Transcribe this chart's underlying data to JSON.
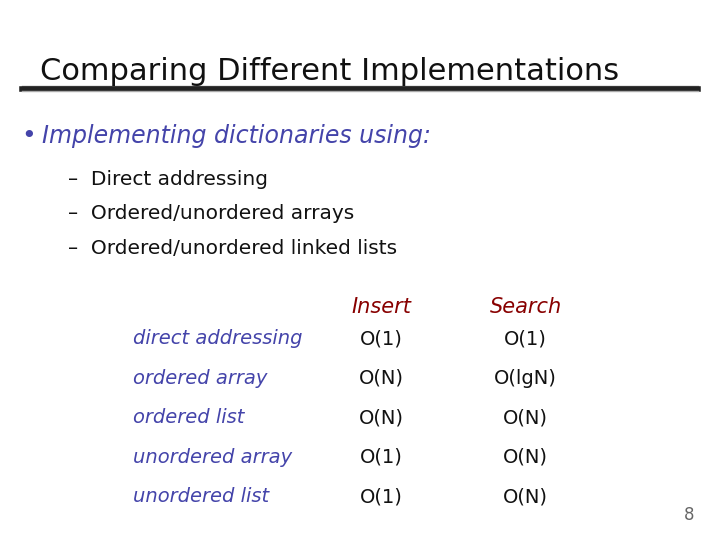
{
  "title": "Comparing Different Implementations",
  "title_fontsize": 22,
  "title_color": "#111111",
  "slide_bg": "#ffffff",
  "bullet_text": "Implementing dictionaries using:",
  "bullet_color": "#4444aa",
  "bullet_fontsize": 17,
  "dash_items": [
    "Direct addressing",
    "Ordered/unordered arrays",
    "Ordered/unordered linked lists"
  ],
  "dash_color": "#111111",
  "dash_fontsize": 14.5,
  "row_labels": [
    "direct addressing",
    "ordered array",
    "ordered list",
    "unordered array",
    "unordered list"
  ],
  "row_label_color": "#4444aa",
  "col_headers": [
    "Insert",
    "Search"
  ],
  "col_header_color": "#880000",
  "col_header_fontsize": 15,
  "insert_values": [
    "O(1)",
    "O(N)",
    "O(N)",
    "O(1)",
    "O(1)"
  ],
  "search_values": [
    "O(1)",
    "O(lgN)",
    "O(N)",
    "O(N)",
    "O(N)"
  ],
  "table_value_color": "#111111",
  "table_fontsize": 14,
  "row_label_fontsize": 14,
  "page_number": "8",
  "page_number_color": "#666666",
  "page_number_fontsize": 12
}
